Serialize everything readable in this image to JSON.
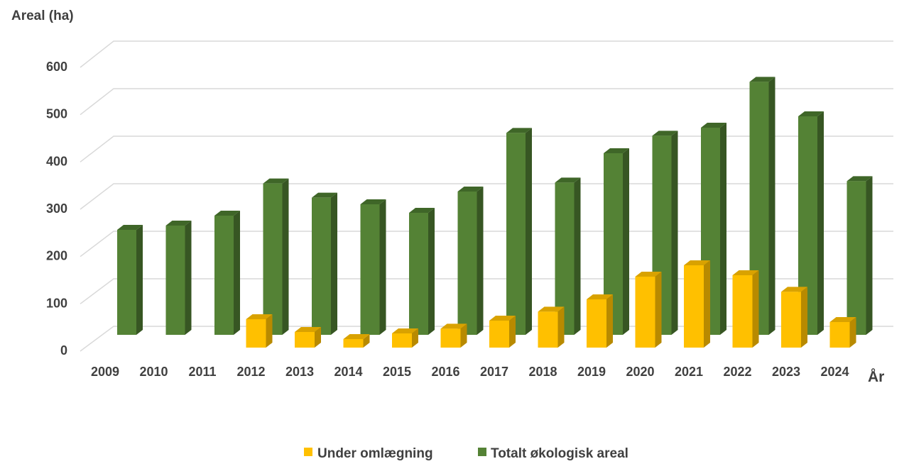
{
  "chart_data": {
    "type": "bar",
    "style": "3d-clustered-depth",
    "ylabel": "Areal (ha)",
    "xlabel": "År",
    "ylim": [
      0,
      600
    ],
    "yticks": [
      0,
      100,
      200,
      300,
      400,
      500,
      600
    ],
    "grid": true,
    "legend_position": "bottom",
    "categories": [
      "2009",
      "2010",
      "2011",
      "2012",
      "2013",
      "2014",
      "2015",
      "2016",
      "2017",
      "2018",
      "2019",
      "2020",
      "2021",
      "2022",
      "2023",
      "2024"
    ],
    "series": [
      {
        "name": "Under omlægning",
        "color": "#FFC000",
        "values": [
          0,
          0,
          0,
          60,
          33,
          18,
          30,
          40,
          57,
          76,
          102,
          150,
          174,
          153,
          118,
          54
        ]
      },
      {
        "name": "Totalt økologisk areal",
        "color": "#548235",
        "values": [
          222,
          231,
          252,
          320,
          290,
          276,
          258,
          303,
          427,
          322,
          384,
          421,
          438,
          535,
          462,
          325
        ]
      }
    ]
  }
}
